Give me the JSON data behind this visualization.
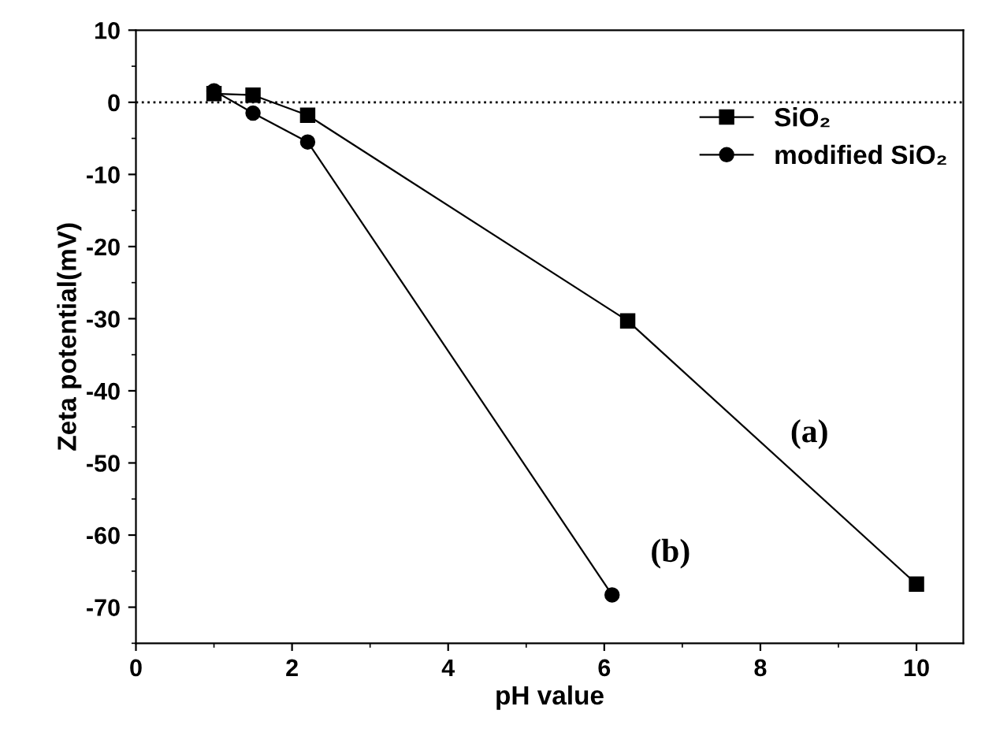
{
  "chart_data": {
    "type": "line",
    "xlabel": "pH value",
    "ylabel": "Zeta potential(mV)",
    "series": [
      {
        "name": "SiO₂",
        "color": "#000000",
        "marker": "square",
        "x": [
          1,
          1.5,
          2.2,
          6.3,
          10
        ],
        "values": [
          1.2,
          1,
          -1.8,
          -30.3,
          -66.8
        ]
      },
      {
        "name": "modified SiO₂",
        "color": "#000000",
        "marker": "circle",
        "x": [
          1,
          1.5,
          2.2,
          6.1
        ],
        "values": [
          1.6,
          -1.5,
          -5.5,
          -68.3
        ]
      }
    ],
    "xlim": [
      0,
      10.6
    ],
    "xticks": [
      0,
      2,
      4,
      6,
      8,
      10
    ],
    "ylim": [
      -75,
      10
    ],
    "yticks": [
      -70,
      -60,
      -50,
      -40,
      -30,
      -20,
      -10,
      0,
      10
    ],
    "ref_lines": [
      {
        "axis": "y",
        "value": 0,
        "color": "#000000",
        "line_style": "dotted"
      }
    ],
    "annotations": [
      "(a)",
      "(b)"
    ],
    "legend": "top right",
    "grid": false,
    "line_style": "solid"
  }
}
